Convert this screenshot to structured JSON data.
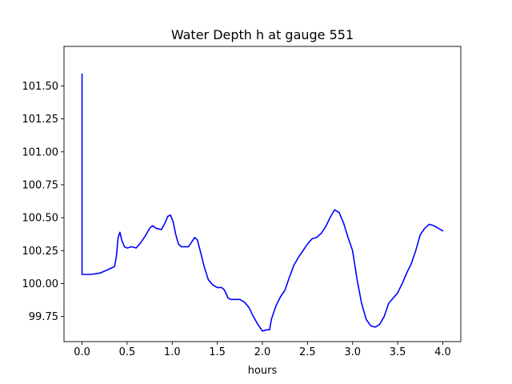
{
  "chart_data": {
    "type": "line",
    "title": "Water Depth h at gauge 551",
    "xlabel": "hours",
    "ylabel": "",
    "xlim": [
      -0.2,
      4.2
    ],
    "ylim": [
      99.56,
      101.8
    ],
    "grid": false,
    "x_ticks": [
      0.0,
      0.5,
      1.0,
      1.5,
      2.0,
      2.5,
      3.0,
      3.5,
      4.0
    ],
    "x_tick_labels": [
      "0.0",
      "0.5",
      "1.0",
      "1.5",
      "2.0",
      "2.5",
      "3.0",
      "3.5",
      "4.0"
    ],
    "y_ticks": [
      99.75,
      100.0,
      100.25,
      100.5,
      100.75,
      101.0,
      101.25,
      101.5
    ],
    "y_tick_labels": [
      "99.75",
      "100.00",
      "100.25",
      "100.50",
      "100.75",
      "101.00",
      "101.25",
      "101.50"
    ],
    "series": [
      {
        "color": "#0000ff",
        "x": [
          0.0,
          0.0,
          0.002,
          0.05,
          0.1,
          0.2,
          0.3,
          0.36,
          0.38,
          0.4,
          0.42,
          0.44,
          0.47,
          0.5,
          0.55,
          0.6,
          0.65,
          0.7,
          0.75,
          0.78,
          0.82,
          0.88,
          0.92,
          0.95,
          0.98,
          1.01,
          1.04,
          1.07,
          1.1,
          1.13,
          1.18,
          1.22,
          1.25,
          1.28,
          1.31,
          1.35,
          1.4,
          1.45,
          1.5,
          1.55,
          1.58,
          1.62,
          1.65,
          1.7,
          1.75,
          1.8,
          1.85,
          1.9,
          1.95,
          2.0,
          2.05,
          2.08,
          2.1,
          2.15,
          2.2,
          2.25,
          2.3,
          2.35,
          2.4,
          2.45,
          2.5,
          2.55,
          2.6,
          2.65,
          2.7,
          2.75,
          2.8,
          2.85,
          2.9,
          2.95,
          3.0,
          3.05,
          3.1,
          3.15,
          3.2,
          3.25,
          3.3,
          3.35,
          3.4,
          3.45,
          3.5,
          3.55,
          3.6,
          3.65,
          3.7,
          3.75,
          3.8,
          3.85,
          3.9,
          3.95,
          4.0
        ],
        "y": [
          101.59,
          100.07,
          100.07,
          100.07,
          100.07,
          100.08,
          100.11,
          100.13,
          100.2,
          100.35,
          100.39,
          100.33,
          100.28,
          100.27,
          100.28,
          100.27,
          100.31,
          100.36,
          100.42,
          100.44,
          100.42,
          100.41,
          100.46,
          100.51,
          100.52,
          100.47,
          100.37,
          100.3,
          100.28,
          100.28,
          100.28,
          100.32,
          100.35,
          100.33,
          100.25,
          100.14,
          100.03,
          99.99,
          99.97,
          99.97,
          99.95,
          99.89,
          99.88,
          99.88,
          99.88,
          99.86,
          99.82,
          99.75,
          99.69,
          99.64,
          99.65,
          99.65,
          99.73,
          99.83,
          99.9,
          99.95,
          100.05,
          100.14,
          100.2,
          100.25,
          100.3,
          100.34,
          100.35,
          100.38,
          100.43,
          100.5,
          100.56,
          100.54,
          100.46,
          100.35,
          100.25,
          100.03,
          99.85,
          99.73,
          99.68,
          99.67,
          99.69,
          99.75,
          99.85,
          99.89,
          99.93,
          100.0,
          100.08,
          100.15,
          100.25,
          100.37,
          100.42,
          100.45,
          100.44,
          100.42,
          100.4
        ]
      }
    ]
  }
}
